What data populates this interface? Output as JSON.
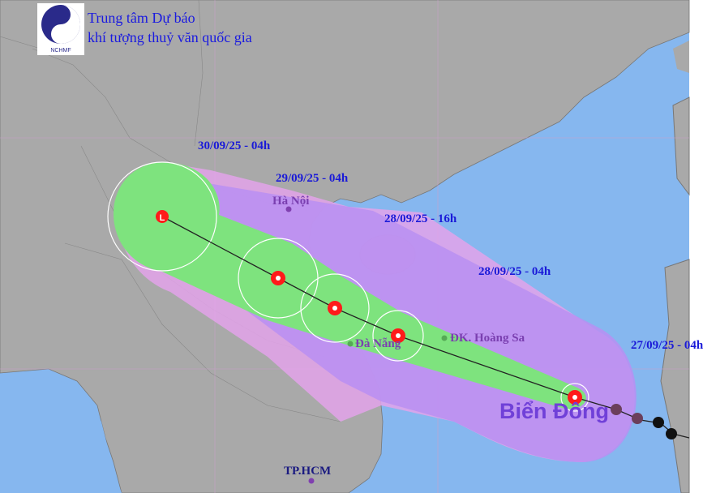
{
  "header": {
    "logo_text": "NCHMF",
    "title_line1": "Trung tâm Dự báo",
    "title_line2": "khí tượng thuỷ văn quốc gia"
  },
  "forecast_times": [
    "30/09/25 - 04h",
    "29/09/25 - 04h",
    "28/09/25 - 16h",
    "28/09/25 - 04h",
    "27/09/25 - 04h"
  ],
  "places": {
    "hanoi": "Hà Nội",
    "danang": "Đà Nẵng",
    "hoangsa": "ĐK. Hoàng Sa",
    "hcm": "TP.HCM",
    "sea": "Biển Đông"
  },
  "storm_symbols": {
    "current": "typhoon-icon",
    "forecast": "typhoon-icon",
    "final": "low-pressure-L",
    "low_label": "L",
    "past": "past-storm-icon"
  },
  "colors": {
    "land": "#a9a9a9",
    "sea": "#86b7ef",
    "risk_cone": "#e3a3ea",
    "uncertainty_cone": "#b88ff2",
    "strong_wind_zone": "#7ee37e",
    "storm_red": "#ff1a1a",
    "date_text": "#1a1ad8",
    "place_text": "#7a3fb0"
  }
}
